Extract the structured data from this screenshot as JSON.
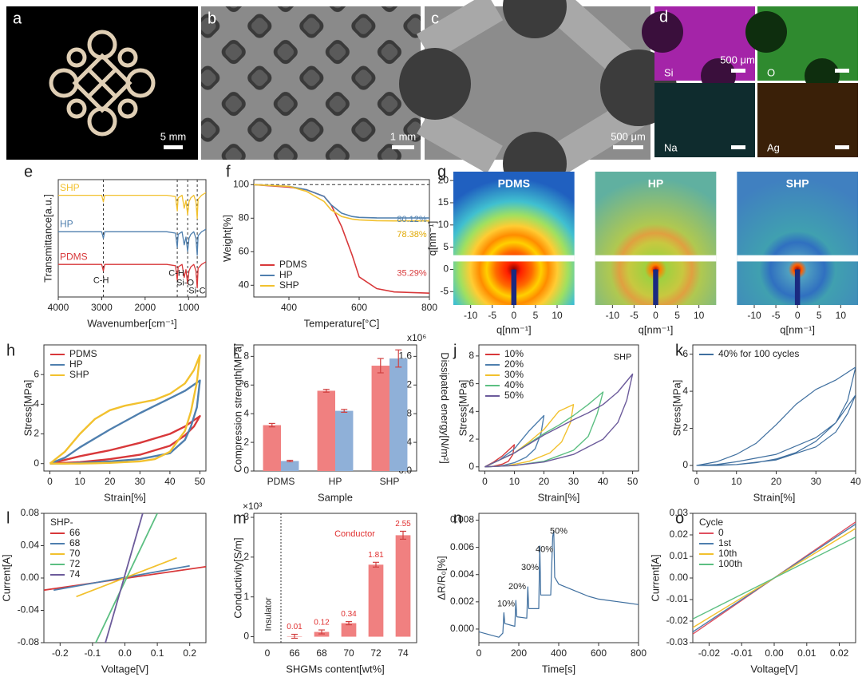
{
  "images": [
    {
      "label": "a",
      "scale_bar": "5 mm"
    },
    {
      "label": "b",
      "scale_bar": "1 mm"
    },
    {
      "label": "c",
      "scale_bar": "500 μm"
    },
    {
      "label": "d",
      "tiles": [
        {
          "element": "Si",
          "scale_bar": "500 μm"
        },
        {
          "element": "O"
        },
        {
          "element": "Na"
        },
        {
          "element": "Ag"
        }
      ]
    }
  ],
  "chart_data": [
    {
      "type": "line",
      "label": "e",
      "xlabel": "Wavenumber[cm⁻¹]",
      "ylabel": "Transmittance[a.u.]",
      "xlim": [
        4000,
        600
      ],
      "xticks": [
        4000,
        3000,
        2000,
        1000
      ],
      "ylim": [
        0.1,
        1
      ],
      "legend": "inline",
      "vlines": [
        2962,
        1260,
        1020,
        800
      ],
      "x": [
        4000,
        3100,
        3000,
        2962,
        2930,
        2800,
        2000,
        1500,
        1300,
        1260,
        1240,
        1150,
        1100,
        1060,
        1020,
        990,
        950,
        880,
        830,
        800,
        780,
        700,
        600
      ],
      "series": [
        {
          "name": "SHP",
          "color": "#f2c12e",
          "values": [
            0.88,
            0.88,
            0.88,
            0.83,
            0.88,
            0.88,
            0.88,
            0.88,
            0.87,
            0.76,
            0.86,
            0.88,
            0.78,
            0.84,
            0.73,
            0.83,
            0.86,
            0.88,
            0.83,
            0.7,
            0.85,
            0.88,
            0.9
          ]
        },
        {
          "name": "HP",
          "color": "#4f7fae",
          "values": [
            0.6,
            0.6,
            0.6,
            0.55,
            0.6,
            0.6,
            0.6,
            0.6,
            0.59,
            0.48,
            0.58,
            0.6,
            0.5,
            0.56,
            0.45,
            0.55,
            0.58,
            0.6,
            0.55,
            0.42,
            0.57,
            0.6,
            0.62
          ]
        },
        {
          "name": "PDMS",
          "color": "#d8383a",
          "values": [
            0.35,
            0.35,
            0.35,
            0.3,
            0.35,
            0.35,
            0.35,
            0.35,
            0.34,
            0.23,
            0.33,
            0.35,
            0.25,
            0.31,
            0.2,
            0.3,
            0.33,
            0.35,
            0.3,
            0.17,
            0.32,
            0.35,
            0.37
          ]
        }
      ],
      "annotations": [
        {
          "text": "C-H"
        },
        {
          "text": "C-H"
        },
        {
          "text": "Si-O"
        },
        {
          "text": "Si-C"
        }
      ]
    },
    {
      "type": "line",
      "label": "f",
      "xlabel": "Temperature[°C]",
      "ylabel": "Weight[%]",
      "xlim": [
        300,
        800
      ],
      "xticks": [
        400,
        600,
        800
      ],
      "ylim": [
        33,
        103
      ],
      "yticks": [
        40,
        60,
        80,
        100
      ],
      "hlines": [
        100
      ],
      "legend": "lower-left",
      "x": [
        300,
        400,
        450,
        500,
        520,
        550,
        580,
        600,
        650,
        700,
        800
      ],
      "series": [
        {
          "name": "PDMS",
          "color": "#d8383a",
          "values": [
            100,
            98.5,
            97,
            93,
            88,
            75,
            58,
            45,
            38,
            36,
            35.29
          ]
        },
        {
          "name": "HP",
          "color": "#4f7fae",
          "values": [
            100,
            99,
            97,
            93,
            88,
            83,
            81,
            80.5,
            80.2,
            80.12,
            80.12
          ]
        },
        {
          "name": "SHP",
          "color": "#f2c12e",
          "values": [
            100,
            99,
            96,
            90,
            85,
            81,
            79.5,
            79,
            78.5,
            78.4,
            78.38
          ]
        }
      ],
      "annotations": [
        {
          "text": "80.12%",
          "color": "#4f7fae"
        },
        {
          "text": "78.38%",
          "color": "#e0a800"
        },
        {
          "text": "35.29%",
          "color": "#d8383a"
        }
      ]
    },
    {
      "type": "saxs",
      "label": "g",
      "titles": [
        "PDMS",
        "HP",
        "SHP"
      ],
      "xlabel": "q[nm⁻¹]",
      "ylabel": "q[nm⁻¹]",
      "xlim": [
        -14,
        14
      ],
      "xticks": [
        -10,
        -5,
        0,
        5,
        10
      ],
      "ylim": [
        -8,
        22
      ],
      "yticks": [
        -5,
        0,
        5,
        10,
        15,
        20
      ]
    },
    {
      "type": "line",
      "label": "h",
      "xlabel": "Strain[%]",
      "ylabel": "Stress[MPa]",
      "xlim": [
        -2,
        52
      ],
      "xticks": [
        0,
        10,
        20,
        30,
        40,
        50
      ],
      "ylim": [
        -0.5,
        8
      ],
      "yticks": [
        0,
        2,
        4,
        6
      ],
      "legend": "upper-left",
      "series": [
        {
          "name": "PDMS",
          "color": "#d8383a",
          "x": [
            0,
            10,
            20,
            30,
            40,
            45,
            50,
            48,
            45,
            40,
            30,
            20,
            10,
            0
          ],
          "values": [
            0,
            0.5,
            0.9,
            1.4,
            2.0,
            2.5,
            3.2,
            2.5,
            1.9,
            1.2,
            0.6,
            0.3,
            0.1,
            0
          ]
        },
        {
          "name": "HP",
          "color": "#4f7fae",
          "x": [
            0,
            5,
            10,
            20,
            30,
            40,
            45,
            50,
            49,
            47,
            45,
            40,
            30,
            20,
            10,
            5,
            0
          ],
          "values": [
            0,
            0.4,
            1.1,
            2.3,
            3.4,
            4.4,
            4.9,
            5.6,
            3.8,
            2.5,
            1.6,
            0.7,
            0.3,
            0.15,
            0.05,
            0,
            0
          ]
        },
        {
          "name": "SHP",
          "color": "#f2c12e",
          "x": [
            0,
            5,
            10,
            15,
            20,
            25,
            30,
            35,
            40,
            45,
            48,
            50,
            49,
            47,
            45,
            40,
            35,
            30,
            25,
            20,
            15,
            10,
            5,
            2,
            0
          ],
          "values": [
            0,
            0.8,
            2.0,
            3.0,
            3.6,
            3.9,
            4.1,
            4.3,
            4.7,
            5.4,
            6.3,
            7.3,
            5.5,
            3.5,
            2.2,
            0.8,
            0.3,
            0.15,
            0.1,
            0.05,
            0.02,
            0,
            0,
            0,
            0
          ]
        }
      ]
    },
    {
      "type": "bar",
      "label": "i",
      "xlabel": "Sample",
      "ylabel": "Compression strength[MPa]",
      "y2label": "Dissipated energy[N/m²]",
      "y2_multiplier": "x10⁶",
      "categories": [
        "PDMS",
        "HP",
        "SHP"
      ],
      "ylim": [
        0,
        8.8
      ],
      "yticks": [
        0,
        2,
        4,
        6,
        8
      ],
      "y2lim": [
        0,
        1.76
      ],
      "y2ticks": [
        {
          "value": 0,
          "label": "0.0"
        },
        0.4,
        0.8,
        1.2,
        1.6
      ],
      "series": [
        {
          "color": "#f08080",
          "values": [
            3.2,
            5.6,
            7.35
          ],
          "errors": [
            0.12,
            0.1,
            0.5
          ]
        },
        {
          "color": "#8fb0d8",
          "axis": "y2",
          "values": [
            0.14,
            0.84,
            1.57
          ],
          "errors": [
            0.01,
            0.02,
            0.12
          ]
        }
      ]
    },
    {
      "type": "line",
      "label": "j",
      "xlabel": "Strain[%]",
      "ylabel": "Stress[MPa]",
      "xlim": [
        -2,
        52
      ],
      "xticks": [
        0,
        10,
        20,
        30,
        40,
        50
      ],
      "ylim": [
        -0.3,
        8.8
      ],
      "yticks": [
        0,
        2,
        4,
        6,
        8
      ],
      "legend": "upper-left",
      "series": [
        {
          "name": "10%",
          "color": "#d8383a",
          "x": [
            0,
            3,
            6,
            8,
            10,
            9.5,
            8,
            6,
            3,
            0
          ],
          "values": [
            0,
            0.35,
            0.8,
            1.2,
            1.6,
            0.9,
            0.4,
            0.2,
            0.05,
            0
          ]
        },
        {
          "name": "20%",
          "color": "#4f7fae",
          "x": [
            0,
            5,
            10,
            15,
            20,
            19,
            17,
            14,
            10,
            5,
            0
          ],
          "values": [
            0,
            0.5,
            1.3,
            2.6,
            3.7,
            2.4,
            1.3,
            0.7,
            0.3,
            0.05,
            0
          ]
        },
        {
          "name": "30%",
          "color": "#f2c12e",
          "x": [
            0,
            10,
            15,
            20,
            25,
            30,
            29,
            26,
            22,
            15,
            8,
            0
          ],
          "values": [
            0,
            1.0,
            1.8,
            2.7,
            4.0,
            4.5,
            3.2,
            1.8,
            1.0,
            0.4,
            0.1,
            0
          ]
        },
        {
          "name": "40%",
          "color": "#5cbf82",
          "x": [
            0,
            10,
            20,
            25,
            30,
            35,
            40,
            38,
            35,
            30,
            20,
            10,
            0
          ],
          "values": [
            0,
            1.0,
            2.4,
            3.0,
            3.7,
            4.5,
            5.4,
            3.8,
            2.2,
            1.2,
            0.4,
            0.1,
            0
          ]
        },
        {
          "name": "50%",
          "color": "#6c5b9b",
          "x": [
            0,
            10,
            20,
            30,
            35,
            40,
            45,
            50,
            48,
            45,
            40,
            30,
            20,
            10,
            0
          ],
          "values": [
            0,
            1.0,
            2.3,
            3.4,
            3.9,
            4.5,
            5.4,
            6.7,
            4.8,
            3.2,
            2.0,
            0.9,
            0.35,
            0.1,
            0
          ]
        }
      ],
      "annotations": [
        {
          "text": "SHP"
        }
      ]
    },
    {
      "type": "line",
      "label": "k",
      "xlabel": "Strain[%]",
      "ylabel": "Stress[MPa]",
      "xlim": [
        -1,
        40
      ],
      "xticks": [
        0,
        10,
        20,
        30,
        40
      ],
      "ylim": [
        -0.3,
        6.5
      ],
      "yticks": [
        0,
        2,
        4,
        6
      ],
      "legend": "upper-left",
      "series": [
        {
          "name": "40% for 100 cycles",
          "color": "#3f6f9f",
          "x": [
            0,
            5,
            10,
            15,
            20,
            25,
            30,
            35,
            40,
            38,
            35,
            30,
            25,
            20,
            15,
            10,
            5,
            0,
            5,
            10,
            20,
            30,
            35,
            40,
            38,
            35,
            30,
            20,
            10,
            0
          ],
          "values": [
            0,
            0.2,
            0.6,
            1.2,
            2.2,
            3.3,
            4.1,
            4.6,
            5.3,
            3.5,
            2.3,
            1.3,
            0.7,
            0.35,
            0.15,
            0.05,
            0,
            0,
            0.05,
            0.2,
            0.6,
            1.5,
            2.3,
            3.8,
            2.8,
            1.8,
            1.0,
            0.3,
            0.05,
            0
          ]
        }
      ]
    },
    {
      "type": "line",
      "label": "l",
      "xlabel": "Voltage[V]",
      "ylabel": "Current[A]",
      "xlim": [
        -0.25,
        0.25
      ],
      "xticks": [
        -0.2,
        -0.1,
        {
          "value": 0,
          "label": "0.0"
        },
        0.1,
        0.2
      ],
      "ylim": [
        -0.08,
        0.08
      ],
      "yticks": [
        -0.08,
        -0.04,
        {
          "value": 0,
          "label": "0.00"
        },
        0.04,
        0.08
      ],
      "legend": "upper-left",
      "legend_title": "SHP-",
      "series": [
        {
          "name": "66",
          "color": "#d8383a",
          "x": [
            -0.25,
            0.25
          ],
          "values": [
            -0.015,
            0.014
          ]
        },
        {
          "name": "68",
          "color": "#4f7fae",
          "x": [
            -0.22,
            0.2
          ],
          "values": [
            -0.015,
            0.015
          ]
        },
        {
          "name": "70",
          "color": "#f2c12e",
          "x": [
            -0.15,
            0.16
          ],
          "values": [
            -0.023,
            0.025
          ]
        },
        {
          "name": "72",
          "color": "#5cbf82",
          "x": [
            -0.09,
            0.1
          ],
          "values": [
            -0.08,
            0.08
          ]
        },
        {
          "name": "74",
          "color": "#6c5b9b",
          "x": [
            -0.06,
            0.055
          ],
          "values": [
            -0.08,
            0.08
          ]
        }
      ]
    },
    {
      "type": "bar",
      "label": "m",
      "xlabel": "SHGMs content[wt%]",
      "ylabel": "Conductivity[S/m]",
      "y_multiplier": "×10³",
      "categories": [
        "0",
        "66",
        "68",
        "70",
        "72",
        "74"
      ],
      "ylim": [
        -0.15,
        3.1
      ],
      "yticks": [
        0,
        1,
        2,
        3
      ],
      "divider": true,
      "series": [
        {
          "color": "#f08080",
          "label_color": "#e03030",
          "values": [
            null,
            0.01,
            0.12,
            0.34,
            1.81,
            2.55
          ],
          "errors": [
            null,
            0.05,
            0.05,
            0.04,
            0.06,
            0.1
          ]
        }
      ],
      "annotations": [
        {
          "text": "Insulator"
        },
        {
          "text": "Conductor",
          "color": "#e03030"
        }
      ]
    },
    {
      "type": "line",
      "label": "n",
      "xlabel": "Time[s]",
      "ylabel": "ΔR/R₀[%]",
      "xlim": [
        0,
        800
      ],
      "xticks": [
        0,
        200,
        400,
        600,
        800
      ],
      "ylim": [
        -0.001,
        0.0085
      ],
      "yticks": [
        {
          "value": 0,
          "label": "0.000"
        },
        0.002,
        0.004,
        0.006,
        0.008
      ],
      "x": [
        0,
        50,
        100,
        120,
        125,
        130,
        180,
        185,
        190,
        240,
        245,
        250,
        300,
        305,
        310,
        360,
        370,
        375,
        380,
        400,
        450,
        500,
        550,
        600,
        650,
        700,
        750,
        800
      ],
      "series": [
        {
          "color": "#3f6f9f",
          "values": [
            -0.0002,
            -0.0004,
            -0.0006,
            -0.0003,
            0.0012,
            0.0004,
            0.0002,
            0.0021,
            0.0009,
            0.0008,
            0.0031,
            0.0015,
            0.0015,
            0.0061,
            0.0025,
            0.0025,
            0.0068,
            0.0072,
            0.0038,
            0.0033,
            0.003,
            0.0027,
            0.0024,
            0.0022,
            0.0021,
            0.002,
            0.0019,
            0.0018
          ]
        }
      ],
      "annotations": [
        {
          "text": "10%"
        },
        {
          "text": "20%"
        },
        {
          "text": "30%"
        },
        {
          "text": "40%"
        },
        {
          "text": "50%"
        }
      ]
    },
    {
      "type": "line",
      "label": "o",
      "xlabel": "Voltage[V]",
      "ylabel": "Current[A]",
      "xlim": [
        -0.025,
        0.025
      ],
      "xticks": [
        -0.02,
        -0.01,
        {
          "value": 0,
          "label": "0.00"
        },
        0.01,
        0.02
      ],
      "ylim": [
        -0.03,
        0.03
      ],
      "yticks": [
        -0.03,
        -0.02,
        -0.01,
        {
          "value": 0,
          "label": "0.00"
        },
        0.01,
        0.02,
        0.03
      ],
      "legend": "upper-left",
      "legend_title": "Cycle",
      "series": [
        {
          "name": "0",
          "color": "#e05060",
          "x": [
            -0.025,
            0.025
          ],
          "values": [
            -0.026,
            0.026
          ]
        },
        {
          "name": "1st",
          "color": "#4f7fae",
          "x": [
            -0.025,
            0.025
          ],
          "values": [
            -0.025,
            0.025
          ]
        },
        {
          "name": "10th",
          "color": "#f2c12e",
          "x": [
            -0.025,
            0.025
          ],
          "values": [
            -0.023,
            0.023
          ]
        },
        {
          "name": "100th",
          "color": "#5cbf82",
          "x": [
            -0.025,
            0.025
          ],
          "values": [
            -0.019,
            0.019
          ]
        }
      ]
    }
  ]
}
